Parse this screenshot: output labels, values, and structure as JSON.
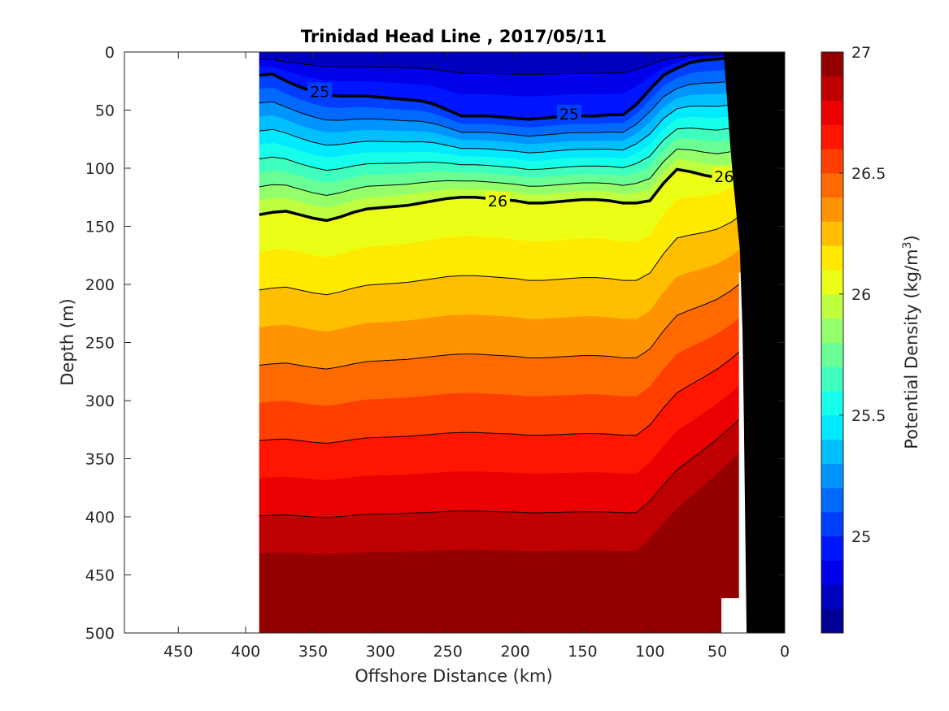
{
  "chart_data": {
    "type": "heatmap",
    "subtype": "filled-contour section",
    "title": "Trinidad Head Line , 2017/05/11",
    "xlabel": "Offshore Distance (km)",
    "ylabel": "Depth (m)",
    "colorbar_label": "Potential Density (kg/m",
    "colorbar_label_sup": "3",
    "colorbar_label_close": ")",
    "xlim": [
      490,
      0
    ],
    "x_reversed": true,
    "ylim": [
      0,
      500
    ],
    "y_reversed": true,
    "x_ticks": [
      450,
      400,
      350,
      300,
      250,
      200,
      150,
      100,
      50,
      0
    ],
    "x_tick_labels": [
      "450",
      "400",
      "350",
      "300",
      "250",
      "200",
      "150",
      "100",
      "50",
      "0"
    ],
    "y_ticks": [
      0,
      50,
      100,
      150,
      200,
      250,
      300,
      350,
      400,
      450,
      500
    ],
    "y_tick_labels": [
      "0",
      "50",
      "100",
      "150",
      "200",
      "250",
      "300",
      "350",
      "400",
      "450",
      "500"
    ],
    "clim": [
      24.6,
      27.0
    ],
    "colorbar_ticks": [
      25,
      25.5,
      26,
      26.5,
      27
    ],
    "colorbar_tick_labels": [
      "25",
      "25.5",
      "26",
      "26.5",
      "27"
    ],
    "contour_interval": 0.1,
    "grid": false,
    "colormap": "jet",
    "colormap_anchors": [
      "#00007f",
      "#0000ff",
      "#007fff",
      "#00ffff",
      "#7fff7f",
      "#ffff00",
      "#ff7f00",
      "#ff0000",
      "#7f0000"
    ],
    "section_x_extent_km": [
      390,
      20
    ],
    "station_distances_km": [
      390,
      380,
      370,
      360,
      350,
      340,
      330,
      320,
      310,
      300,
      290,
      280,
      270,
      260,
      250,
      240,
      230,
      220,
      210,
      200,
      190,
      180,
      170,
      160,
      150,
      140,
      130,
      120,
      110,
      100,
      90,
      80,
      70,
      60,
      50,
      40,
      30,
      20
    ],
    "isopycnals": [
      {
        "sigma": 25.0,
        "depths_m": [
          20,
          19,
          25,
          30,
          34,
          37,
          38,
          38,
          38,
          39,
          40,
          41,
          42,
          45,
          50,
          55,
          55,
          55,
          56,
          57,
          58,
          57,
          56,
          55,
          55,
          55,
          54,
          54,
          45,
          32,
          20,
          14,
          9,
          7,
          6,
          5,
          3,
          1
        ]
      },
      {
        "sigma": 26.0,
        "depths_m": [
          140,
          138,
          137,
          140,
          143,
          145,
          142,
          138,
          135,
          134,
          133,
          132,
          130,
          128,
          126,
          125,
          125,
          126,
          127,
          128,
          130,
          130,
          129,
          128,
          127,
          127,
          128,
          130,
          130,
          128,
          113,
          101,
          103,
          106,
          108,
          106,
          100,
          88
        ]
      }
    ],
    "contour_labels": [
      {
        "value": "25",
        "x": 345,
        "y": 34
      },
      {
        "value": "25",
        "x": 160,
        "y": 53
      },
      {
        "value": "26",
        "x": 213,
        "y": 128
      },
      {
        "value": "26",
        "x": 45,
        "y": 107
      }
    ],
    "bathymetry_depths_m": [
      {
        "x": 0,
        "y": 0
      },
      {
        "x": 0,
        "y": 500
      },
      {
        "x": 28,
        "y": 500
      },
      {
        "x": 30,
        "y": 320
      },
      {
        "x": 31,
        "y": 240
      },
      {
        "x": 33,
        "y": 170
      },
      {
        "x": 38,
        "y": 110
      },
      {
        "x": 40,
        "y": 82
      },
      {
        "x": 45,
        "y": 0
      }
    ],
    "nodata_regions": [
      {
        "name": "offshore-gap",
        "x": [
          490,
          390
        ],
        "y": [
          0,
          500
        ]
      },
      {
        "name": "shelf-gap-deep",
        "x": [
          47,
          28
        ],
        "y": [
          470,
          500
        ]
      },
      {
        "name": "shelf-gap-mid",
        "x": [
          34,
          28
        ],
        "y": [
          190,
          500
        ]
      }
    ]
  }
}
